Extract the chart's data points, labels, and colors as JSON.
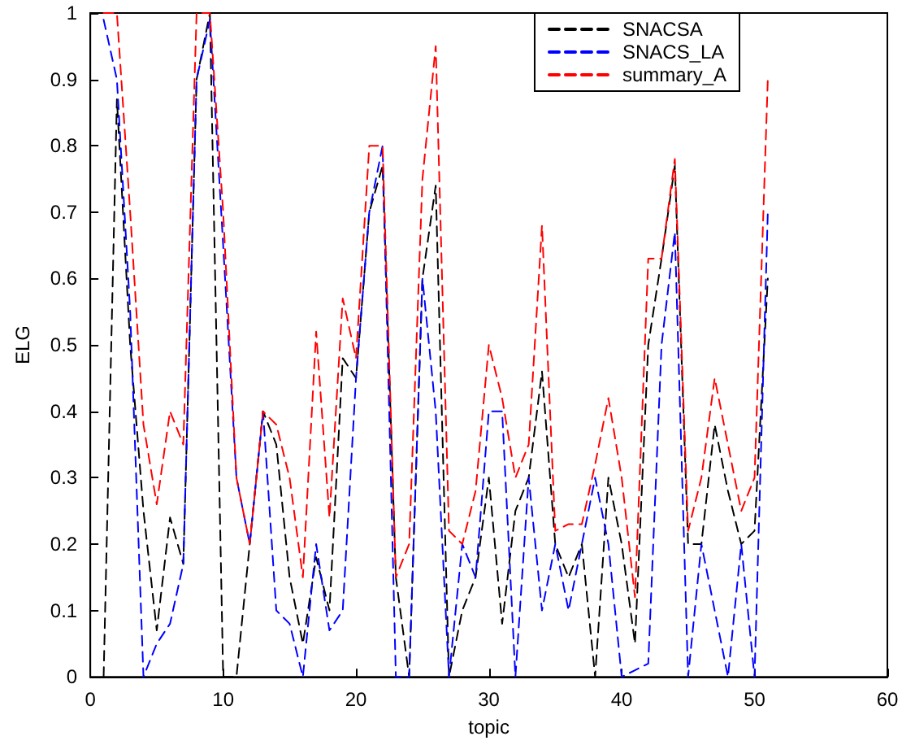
{
  "chart_data": {
    "type": "line",
    "xlabel": "topic",
    "ylabel": "ELG",
    "x": [
      1,
      2,
      3,
      4,
      5,
      6,
      7,
      8,
      9,
      10,
      11,
      12,
      13,
      14,
      15,
      16,
      17,
      18,
      19,
      20,
      21,
      22,
      23,
      24,
      25,
      26,
      27,
      28,
      29,
      30,
      31,
      32,
      33,
      34,
      35,
      36,
      37,
      38,
      39,
      40,
      41,
      42,
      43,
      44,
      45,
      46,
      47,
      48,
      49,
      50,
      51
    ],
    "series": [
      {
        "name": "SNACSA",
        "color": "#000000",
        "values": [
          0,
          0.87,
          0.5,
          0.25,
          0.07,
          0.24,
          0.17,
          0.9,
          1,
          0,
          0,
          0.2,
          0.4,
          0.35,
          0.15,
          0.05,
          0.18,
          0.1,
          0.48,
          0.45,
          0.7,
          0.77,
          0.15,
          0,
          0.6,
          0.74,
          0,
          0.1,
          0.15,
          0.3,
          0.08,
          0.25,
          0.3,
          0.46,
          0.2,
          0.15,
          0.2,
          0,
          0.3,
          0.2,
          0.05,
          0.5,
          0.63,
          0.77,
          0.2,
          0.2,
          0.38,
          0.28,
          0.2,
          0.22,
          0.6
        ]
      },
      {
        "name": "SNACS_LA",
        "color": "#0000ff",
        "values": [
          0.99,
          0.9,
          0.55,
          0,
          0.05,
          0.08,
          0.17,
          0.9,
          0.99,
          0.65,
          0.3,
          0.2,
          0.4,
          0.1,
          0.08,
          0,
          0.2,
          0.07,
          0.1,
          0.45,
          0.7,
          0.8,
          0,
          0,
          0.6,
          0.4,
          0,
          0.2,
          0.15,
          0.4,
          0.4,
          0,
          0.3,
          0.1,
          0.2,
          0.1,
          0.2,
          0.3,
          0.2,
          0,
          0.01,
          0.02,
          0.5,
          0.67,
          0,
          0.2,
          0.1,
          0,
          0.2,
          0,
          0.7
        ]
      },
      {
        "name": "summary_A",
        "color": "#ff0000",
        "values": [
          1,
          1,
          0.7,
          0.38,
          0.26,
          0.4,
          0.35,
          1,
          1,
          0.7,
          0.3,
          0.2,
          0.4,
          0.38,
          0.3,
          0.15,
          0.52,
          0.24,
          0.57,
          0.48,
          0.8,
          0.8,
          0.15,
          0.2,
          0.75,
          0.95,
          0.22,
          0.2,
          0.28,
          0.5,
          0.42,
          0.3,
          0.35,
          0.68,
          0.22,
          0.23,
          0.23,
          0.32,
          0.42,
          0.3,
          0.12,
          0.63,
          0.63,
          0.78,
          0.22,
          0.3,
          0.45,
          0.35,
          0.25,
          0.3,
          0.9
        ]
      }
    ],
    "xlim": [
      0,
      60
    ],
    "xticks": [
      0,
      10,
      20,
      30,
      40,
      50,
      60
    ],
    "ylim": [
      0,
      1
    ],
    "yticks": [
      0,
      0.1,
      0.2,
      0.3,
      0.4,
      0.5,
      0.6,
      0.7,
      0.8,
      0.9,
      1
    ],
    "grid": false,
    "legend": "top right",
    "marker": "none",
    "line_style": "dashed"
  }
}
